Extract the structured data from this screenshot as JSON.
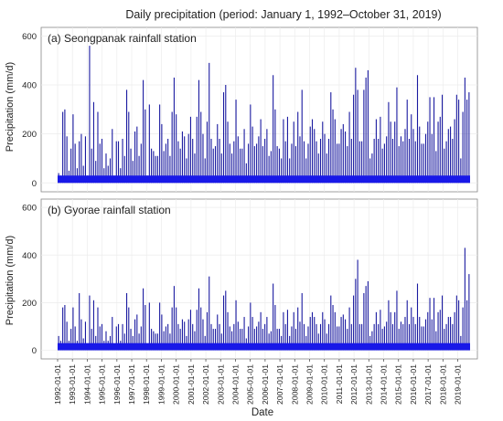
{
  "chart_data": {
    "type": "bar",
    "title": "Daily precipitation (period: January 1, 1992–October 31, 2019)",
    "xlabel": "Date",
    "ylabel": "Precipitation (mm/d)",
    "ylim": [
      0,
      600
    ],
    "yticks": [
      0,
      200,
      400,
      600
    ],
    "grid": true,
    "x_tick_labels": [
      "1992-01-01",
      "1993-01-01",
      "1994-01-01",
      "1995-01-01",
      "1996-01-01",
      "1997-01-01",
      "1998-01-01",
      "1999-01-01",
      "2000-01-01",
      "2001-01-01",
      "2002-01-01",
      "2003-01-01",
      "2004-01-01",
      "2005-01-01",
      "2006-01-01",
      "2007-01-01",
      "2008-01-01",
      "2009-01-01",
      "2010-01-01",
      "2011-01-01",
      "2012-01-01",
      "2013-01-01",
      "2014-01-01",
      "2015-01-01",
      "2016-01-01",
      "2017-01-01",
      "2018-01-01",
      "2019-01-01"
    ],
    "colors": {
      "spike": "#1a1aa0",
      "fill": "#1818e8",
      "panel_bg": "#ffffff",
      "grid": "#ececec",
      "border": "#888888"
    },
    "panels": [
      {
        "label": "(a) Seongpanak rainfall station",
        "values": [
          40,
          30,
          290,
          300,
          190,
          50,
          140,
          280,
          160,
          60,
          170,
          200,
          70,
          190,
          30,
          560,
          140,
          330,
          90,
          290,
          160,
          180,
          60,
          120,
          70,
          100,
          220,
          30,
          170,
          170,
          60,
          180,
          110,
          380,
          290,
          140,
          90,
          210,
          230,
          110,
          160,
          420,
          300,
          30,
          320,
          140,
          130,
          110,
          110,
          320,
          240,
          130,
          160,
          180,
          110,
          290,
          430,
          280,
          170,
          140,
          210,
          190,
          100,
          200,
          270,
          180,
          120,
          270,
          420,
          290,
          200,
          100,
          250,
          490,
          180,
          140,
          150,
          240,
          180,
          120,
          370,
          400,
          250,
          160,
          120,
          170,
          340,
          190,
          140,
          140,
          220,
          80,
          160,
          320,
          230,
          150,
          160,
          190,
          260,
          150,
          180,
          220,
          110,
          130,
          440,
          300,
          150,
          140,
          100,
          260,
          170,
          270,
          100,
          160,
          250,
          150,
          290,
          190,
          380,
          170,
          100,
          160,
          230,
          260,
          220,
          170,
          120,
          180,
          250,
          200,
          120,
          180,
          370,
          300,
          260,
          160,
          160,
          220,
          240,
          210,
          150,
          290,
          180,
          360,
          470,
          380,
          170,
          170,
          380,
          430,
          460,
          100,
          120,
          180,
          260,
          180,
          270,
          140,
          160,
          190,
          330,
          250,
          180,
          250,
          390,
          150,
          190,
          170,
          220,
          340,
          180,
          280,
          220,
          170,
          440,
          230,
          160,
          160,
          200,
          250,
          350,
          200,
          350,
          130,
          250,
          270,
          360,
          140,
          170,
          220,
          230,
          180,
          260,
          360,
          340,
          100,
          290,
          430,
          340,
          370
        ]
      },
      {
        "label": "(b) Gyorae rainfall station",
        "values": [
          60,
          40,
          180,
          190,
          120,
          40,
          90,
          180,
          100,
          40,
          240,
          130,
          50,
          120,
          20,
          230,
          90,
          210,
          60,
          180,
          100,
          110,
          40,
          80,
          40,
          60,
          140,
          20,
          100,
          110,
          40,
          110,
          70,
          240,
          180,
          90,
          60,
          130,
          150,
          70,
          100,
          260,
          190,
          20,
          200,
          90,
          80,
          70,
          70,
          200,
          150,
          80,
          100,
          110,
          70,
          180,
          270,
          180,
          110,
          90,
          130,
          120,
          60,
          130,
          170,
          110,
          80,
          170,
          260,
          180,
          130,
          60,
          160,
          310,
          110,
          90,
          90,
          150,
          110,
          70,
          230,
          250,
          160,
          100,
          80,
          110,
          210,
          120,
          90,
          90,
          140,
          50,
          100,
          200,
          140,
          90,
          100,
          120,
          160,
          90,
          110,
          140,
          70,
          80,
          280,
          190,
          90,
          90,
          60,
          160,
          110,
          170,
          60,
          100,
          160,
          90,
          180,
          120,
          240,
          110,
          60,
          100,
          140,
          160,
          140,
          110,
          70,
          110,
          160,
          130,
          70,
          110,
          230,
          190,
          160,
          100,
          100,
          140,
          150,
          130,
          90,
          180,
          110,
          230,
          300,
          380,
          110,
          110,
          240,
          270,
          290,
          60,
          80,
          110,
          160,
          110,
          170,
          90,
          100,
          120,
          210,
          160,
          110,
          160,
          250,
          90,
          120,
          110,
          140,
          210,
          110,
          180,
          140,
          110,
          280,
          140,
          100,
          100,
          130,
          160,
          220,
          130,
          220,
          80,
          160,
          170,
          230,
          90,
          110,
          140,
          140,
          110,
          160,
          230,
          210,
          60,
          180,
          430,
          210,
          320
        ]
      }
    ]
  }
}
